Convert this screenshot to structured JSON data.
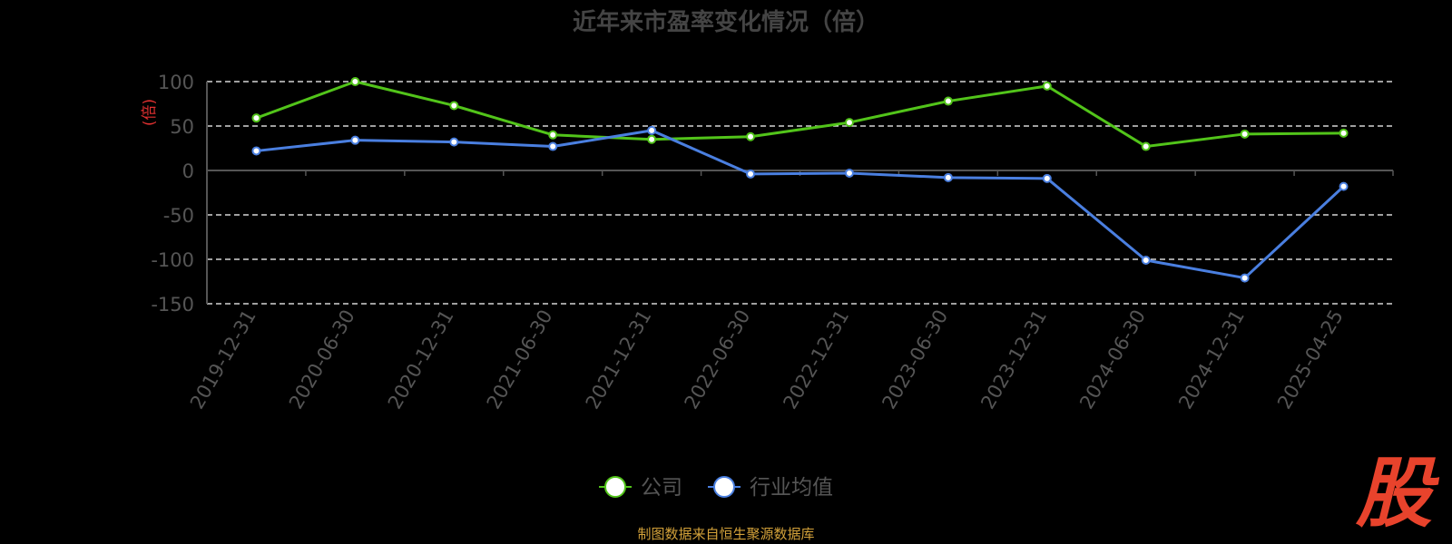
{
  "chart_data": {
    "type": "line",
    "title": "近年来市盈率变化情况（倍）",
    "ylabel": "(倍)",
    "xlabel": "",
    "categories": [
      "2019-12-31",
      "2020-06-30",
      "2020-12-31",
      "2021-06-30",
      "2021-12-31",
      "2022-06-30",
      "2022-12-31",
      "2023-06-30",
      "2023-12-31",
      "2024-06-30",
      "2024-12-31",
      "2025-04-25"
    ],
    "series": [
      {
        "name": "公司",
        "color": "#52c41a",
        "values": [
          59,
          100,
          73,
          40,
          35,
          38,
          54,
          78,
          95,
          27,
          41,
          42
        ]
      },
      {
        "name": "行业均值",
        "color": "#4a7fe0",
        "values": [
          22,
          34,
          32,
          27,
          45,
          -4,
          -3,
          -8,
          -9,
          -101,
          -121,
          -18
        ]
      }
    ],
    "ylim": [
      -150,
      100
    ],
    "yticks": [
      100,
      50,
      0,
      -50,
      -100,
      -150
    ],
    "grid": true,
    "legend_position": "bottom-center"
  },
  "source_text": "制图数据来自恒生聚源数据库",
  "logo_text": "股",
  "colors": {
    "ylabel": "#e03030",
    "source": "#d4a23a",
    "logo": "#e8432c"
  }
}
